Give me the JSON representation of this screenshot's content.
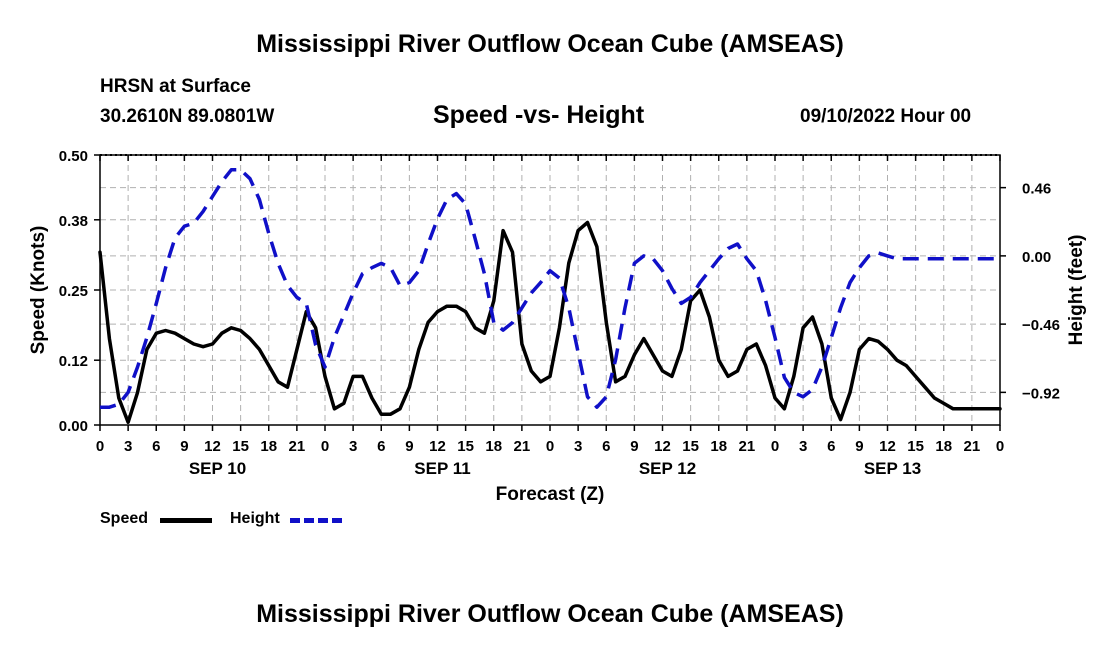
{
  "header": {
    "title": "Mississippi River Outflow Ocean Cube (AMSEAS)",
    "station": "HRSN at Surface",
    "coords": "30.2610N  89.0801W",
    "subtitle": "Speed -vs- Height",
    "datetime": "09/10/2022 Hour 00",
    "footer_title": "Mississippi River Outflow Ocean Cube (AMSEAS)"
  },
  "legend": {
    "speed_label": "Speed",
    "height_label": "Height"
  },
  "colors": {
    "speed": "#000000",
    "height": "#1010c8",
    "grid": "#b0b0b0"
  },
  "chart_data": {
    "type": "line",
    "title": "Speed -vs- Height",
    "xlabel": "Forecast (Z)",
    "ylabel": "Speed (Knots)",
    "y2label": "Height (feet)",
    "xlim": [
      0,
      96
    ],
    "ylim": [
      0,
      0.5
    ],
    "y2lim": [
      -1.14,
      0.68
    ],
    "yticks": [
      0.0,
      0.12,
      0.25,
      0.38,
      0.5
    ],
    "ytick_labels": [
      "0.00",
      "0.12",
      "0.25",
      "0.38",
      "0.50"
    ],
    "y2ticks": [
      -0.92,
      -0.46,
      0.0,
      0.46
    ],
    "y2tick_labels": [
      "−0.92",
      "−0.46",
      "0.00",
      "0.46"
    ],
    "xticks": [
      0,
      3,
      6,
      9,
      12,
      15,
      18,
      21,
      24,
      27,
      30,
      33,
      36,
      39,
      42,
      45,
      48,
      51,
      54,
      57,
      60,
      63,
      66,
      69,
      72,
      75,
      78,
      81,
      84,
      87,
      90,
      93,
      96
    ],
    "xtick_labels": [
      "0",
      "3",
      "6",
      "9",
      "12",
      "15",
      "18",
      "21",
      "0",
      "3",
      "6",
      "9",
      "12",
      "15",
      "18",
      "21",
      "0",
      "3",
      "6",
      "9",
      "12",
      "15",
      "18",
      "21",
      "0",
      "3",
      "6",
      "9",
      "12",
      "15",
      "18",
      "21",
      "0"
    ],
    "day_labels": [
      {
        "x": 12,
        "label": "SEP 10"
      },
      {
        "x": 36,
        "label": "SEP 11"
      },
      {
        "x": 60,
        "label": "SEP 12"
      },
      {
        "x": 84,
        "label": "SEP 13"
      }
    ],
    "grid": true,
    "series": [
      {
        "name": "Speed",
        "axis": "left",
        "style": "solid",
        "x": [
          0,
          1,
          2,
          3,
          4,
          5,
          6,
          7,
          8,
          9,
          10,
          11,
          12,
          13,
          14,
          15,
          16,
          17,
          18,
          19,
          20,
          21,
          22,
          23,
          24,
          25,
          26,
          27,
          28,
          29,
          30,
          31,
          32,
          33,
          34,
          35,
          36,
          37,
          38,
          39,
          40,
          41,
          42,
          43,
          44,
          45,
          46,
          47,
          48,
          49,
          50,
          51,
          52,
          53,
          54,
          55,
          56,
          57,
          58,
          59,
          60,
          61,
          62,
          63,
          64,
          65,
          66,
          67,
          68,
          69,
          70,
          71,
          72,
          73,
          74,
          75,
          76,
          77,
          78,
          79,
          80,
          81,
          82,
          83,
          84,
          85,
          86,
          87,
          88,
          89,
          90,
          91,
          92,
          93,
          94,
          95,
          96
        ],
        "values": [
          0.32,
          0.16,
          0.05,
          0.005,
          0.06,
          0.14,
          0.17,
          0.175,
          0.17,
          0.16,
          0.15,
          0.145,
          0.15,
          0.17,
          0.18,
          0.175,
          0.16,
          0.14,
          0.11,
          0.08,
          0.07,
          0.14,
          0.21,
          0.18,
          0.09,
          0.03,
          0.04,
          0.09,
          0.09,
          0.05,
          0.02,
          0.02,
          0.03,
          0.07,
          0.14,
          0.19,
          0.21,
          0.22,
          0.22,
          0.21,
          0.18,
          0.17,
          0.23,
          0.36,
          0.32,
          0.15,
          0.1,
          0.08,
          0.09,
          0.18,
          0.3,
          0.36,
          0.375,
          0.33,
          0.19,
          0.08,
          0.09,
          0.13,
          0.16,
          0.13,
          0.1,
          0.09,
          0.14,
          0.23,
          0.25,
          0.2,
          0.12,
          0.09,
          0.1,
          0.14,
          0.15,
          0.11,
          0.05,
          0.03,
          0.09,
          0.18,
          0.2,
          0.15,
          0.05,
          0.01,
          0.06,
          0.14,
          0.16,
          0.155,
          0.14,
          0.12,
          0.11,
          0.09,
          0.07,
          0.05,
          0.04,
          0.03,
          0.03,
          0.03,
          0.03,
          0.03,
          0.03
        ]
      },
      {
        "name": "Height",
        "axis": "right",
        "style": "dashed",
        "x": [
          0,
          1,
          2,
          3,
          4,
          5,
          6,
          7,
          8,
          9,
          10,
          11,
          12,
          13,
          14,
          15,
          16,
          17,
          18,
          19,
          20,
          21,
          22,
          23,
          24,
          25,
          26,
          27,
          28,
          29,
          30,
          31,
          32,
          33,
          34,
          35,
          36,
          37,
          38,
          39,
          40,
          41,
          42,
          43,
          44,
          45,
          46,
          47,
          48,
          49,
          50,
          51,
          52,
          53,
          54,
          55,
          56,
          57,
          58,
          59,
          60,
          61,
          62,
          63,
          64,
          65,
          66,
          67,
          68,
          69,
          70,
          71,
          72,
          73,
          74,
          75,
          76,
          77,
          78,
          79,
          80,
          81,
          82,
          83,
          84,
          85,
          86,
          87,
          88,
          89,
          90,
          91,
          92,
          93,
          94,
          95,
          96
        ],
        "values": [
          -1.02,
          -1.02,
          -1.0,
          -0.92,
          -0.75,
          -0.55,
          -0.32,
          -0.08,
          0.12,
          0.2,
          0.22,
          0.3,
          0.4,
          0.5,
          0.58,
          0.58,
          0.52,
          0.38,
          0.15,
          -0.05,
          -0.2,
          -0.28,
          -0.32,
          -0.6,
          -0.75,
          -0.55,
          -0.4,
          -0.25,
          -0.12,
          -0.08,
          -0.05,
          -0.08,
          -0.2,
          -0.18,
          -0.1,
          0.08,
          0.25,
          0.38,
          0.42,
          0.35,
          0.12,
          -0.12,
          -0.45,
          -0.5,
          -0.45,
          -0.35,
          -0.25,
          -0.18,
          -0.1,
          -0.15,
          -0.35,
          -0.65,
          -0.95,
          -1.02,
          -0.95,
          -0.7,
          -0.35,
          -0.05,
          0.0,
          -0.02,
          -0.1,
          -0.22,
          -0.32,
          -0.28,
          -0.18,
          -0.1,
          -0.02,
          0.05,
          0.08,
          -0.02,
          -0.1,
          -0.3,
          -0.55,
          -0.82,
          -0.92,
          -0.95,
          -0.9,
          -0.75,
          -0.55,
          -0.35,
          -0.18,
          -0.08,
          0.0,
          0.02,
          0.0,
          -0.02,
          -0.02,
          -0.02,
          -0.02,
          -0.02,
          -0.02,
          -0.02,
          -0.02,
          -0.02,
          -0.02,
          -0.02,
          -0.02
        ]
      }
    ]
  }
}
